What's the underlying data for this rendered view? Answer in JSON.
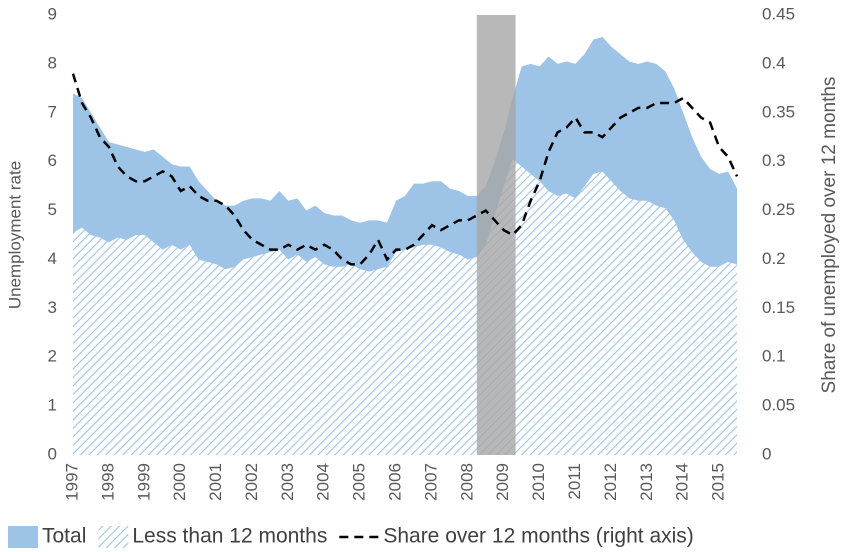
{
  "chart_data": {
    "type": "area",
    "y_label": "Unemployment rate",
    "y2_label": "Share of unemployed over 12 months",
    "x": [
      1997,
      1997.25,
      1997.5,
      1997.75,
      1998,
      1998.25,
      1998.5,
      1998.75,
      1999,
      1999.25,
      1999.5,
      1999.75,
      2000,
      2000.25,
      2000.5,
      2000.75,
      2001,
      2001.25,
      2001.5,
      2001.75,
      2002,
      2002.25,
      2002.5,
      2002.75,
      2003,
      2003.25,
      2003.5,
      2003.75,
      2004,
      2004.25,
      2004.5,
      2004.75,
      2005,
      2005.25,
      2005.5,
      2005.75,
      2006,
      2006.25,
      2006.5,
      2006.75,
      2007,
      2007.25,
      2007.5,
      2007.75,
      2008,
      2008.25,
      2008.5,
      2008.75,
      2009,
      2009.25,
      2009.5,
      2009.75,
      2010,
      2010.25,
      2010.5,
      2010.75,
      2011,
      2011.25,
      2011.5,
      2011.75,
      2012,
      2012.25,
      2012.5,
      2012.75,
      2013,
      2013.25,
      2013.5,
      2013.75,
      2014,
      2014.25,
      2014.5,
      2014.75,
      2015,
      2015.25,
      2015.5
    ],
    "series": [
      {
        "name": "Total",
        "color": "#9dc3e6",
        "style": "area",
        "values": [
          7.4,
          7.3,
          7.0,
          6.7,
          6.4,
          6.35,
          6.3,
          6.25,
          6.2,
          6.25,
          6.1,
          5.95,
          5.9,
          5.9,
          5.6,
          5.4,
          5.2,
          5.1,
          5.1,
          5.2,
          5.25,
          5.25,
          5.2,
          5.4,
          5.2,
          5.25,
          5.0,
          5.1,
          4.95,
          4.9,
          4.9,
          4.8,
          4.75,
          4.8,
          4.8,
          4.75,
          5.2,
          5.3,
          5.55,
          5.55,
          5.6,
          5.6,
          5.45,
          5.4,
          5.3,
          5.3,
          5.5,
          6.0,
          6.6,
          7.3,
          7.95,
          8.0,
          7.95,
          8.15,
          8.0,
          8.05,
          8.0,
          8.2,
          8.5,
          8.55,
          8.35,
          8.2,
          8.05,
          8.0,
          8.05,
          8.0,
          7.85,
          7.5,
          7.0,
          6.5,
          6.1,
          5.85,
          5.75,
          5.8,
          5.45
        ]
      },
      {
        "name": "Less than 12 months",
        "color": "#9dc3e6",
        "style": "hatched-area",
        "values": [
          4.55,
          4.65,
          4.5,
          4.45,
          4.35,
          4.45,
          4.4,
          4.5,
          4.5,
          4.35,
          4.2,
          4.3,
          4.2,
          4.3,
          4.0,
          3.95,
          3.9,
          3.8,
          3.85,
          4.0,
          4.05,
          4.1,
          4.15,
          4.2,
          4.0,
          4.1,
          3.95,
          4.05,
          3.9,
          3.85,
          3.85,
          3.9,
          3.8,
          3.75,
          3.8,
          3.85,
          4.15,
          4.2,
          4.25,
          4.3,
          4.3,
          4.25,
          4.15,
          4.1,
          4.0,
          4.05,
          4.3,
          4.9,
          5.5,
          6.05,
          5.9,
          5.75,
          5.6,
          5.4,
          5.3,
          5.35,
          5.25,
          5.5,
          5.75,
          5.8,
          5.6,
          5.4,
          5.25,
          5.2,
          5.2,
          5.1,
          5.05,
          4.8,
          4.4,
          4.15,
          3.95,
          3.85,
          3.85,
          3.95,
          3.9
        ]
      },
      {
        "name": "Share over 12 months (right axis)",
        "color": "#000000",
        "style": "dashed-line",
        "axis": "y2",
        "values": [
          0.39,
          0.36,
          0.345,
          0.325,
          0.315,
          0.295,
          0.285,
          0.28,
          0.28,
          0.285,
          0.29,
          0.285,
          0.27,
          0.275,
          0.265,
          0.26,
          0.26,
          0.255,
          0.245,
          0.23,
          0.22,
          0.215,
          0.21,
          0.21,
          0.215,
          0.21,
          0.215,
          0.21,
          0.215,
          0.21,
          0.2,
          0.195,
          0.195,
          0.205,
          0.22,
          0.2,
          0.21,
          0.21,
          0.215,
          0.225,
          0.235,
          0.23,
          0.235,
          0.24,
          0.24,
          0.245,
          0.25,
          0.24,
          0.23,
          0.225,
          0.235,
          0.26,
          0.28,
          0.31,
          0.33,
          0.335,
          0.345,
          0.33,
          0.33,
          0.325,
          0.335,
          0.345,
          0.35,
          0.355,
          0.355,
          0.36,
          0.36,
          0.36,
          0.365,
          0.355,
          0.345,
          0.34,
          0.315,
          0.305,
          0.285
        ]
      }
    ],
    "shaded_span": [
      2008.25,
      2009.33
    ],
    "shade_color": "#a6a6a6",
    "xlim": [
      1997,
      2015.75
    ],
    "xticks": [
      1997,
      1998,
      1999,
      2000,
      2001,
      2002,
      2003,
      2004,
      2005,
      2006,
      2007,
      2008,
      2009,
      2010,
      2011,
      2012,
      2013,
      2014,
      2015
    ],
    "ylim": [
      0,
      9
    ],
    "yticks": [
      0,
      1,
      2,
      3,
      4,
      5,
      6,
      7,
      8,
      9
    ],
    "y2lim": [
      0,
      0.45
    ],
    "y2ticks": [
      0,
      0.05,
      0.1,
      0.15,
      0.2,
      0.25,
      0.3,
      0.35,
      0.4,
      0.45
    ],
    "legend": "bottom"
  }
}
